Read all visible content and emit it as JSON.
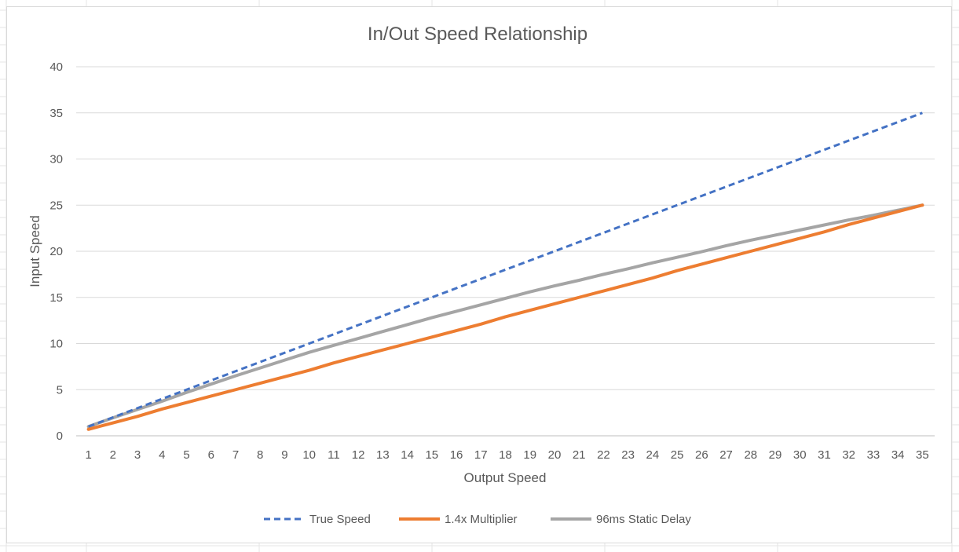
{
  "chart_data": {
    "type": "line",
    "title": "In/Out Speed Relationship",
    "xlabel": "Output Speed",
    "ylabel": "Input Speed",
    "categories": [
      1,
      2,
      3,
      4,
      5,
      6,
      7,
      8,
      9,
      10,
      11,
      12,
      13,
      14,
      15,
      16,
      17,
      18,
      19,
      20,
      21,
      22,
      23,
      24,
      25,
      26,
      27,
      28,
      29,
      30,
      31,
      32,
      33,
      34,
      35
    ],
    "yticks": [
      0,
      5,
      10,
      15,
      20,
      25,
      30,
      35,
      40
    ],
    "ylim": [
      0,
      40
    ],
    "grid": true,
    "legend_position": "bottom",
    "series": [
      {
        "name": "True Speed",
        "color": "#4472c4",
        "dashed": true,
        "values": [
          1,
          2,
          3,
          4,
          5,
          6,
          7,
          8,
          9,
          10,
          11,
          12,
          13,
          14,
          15,
          16,
          17,
          18,
          19,
          20,
          21,
          22,
          23,
          24,
          25,
          26,
          27,
          28,
          29,
          30,
          31,
          32,
          33,
          34,
          35
        ]
      },
      {
        "name": "1.4x Multiplier",
        "color": "#ed7d31",
        "dashed": false,
        "values": [
          0.7,
          1.4,
          2.1,
          2.9,
          3.6,
          4.3,
          5.0,
          5.7,
          6.4,
          7.1,
          7.9,
          8.6,
          9.3,
          10.0,
          10.7,
          11.4,
          12.1,
          12.9,
          13.6,
          14.3,
          15.0,
          15.7,
          16.4,
          17.1,
          17.9,
          18.6,
          19.3,
          20.0,
          20.7,
          21.4,
          22.1,
          22.9,
          23.6,
          24.3,
          25.0
        ]
      },
      {
        "name": "96ms Static Delay",
        "color": "#a5a5a5",
        "dashed": false,
        "values": [
          1.0,
          1.95,
          2.85,
          3.75,
          4.7,
          5.6,
          6.5,
          7.35,
          8.2,
          9.05,
          9.8,
          10.55,
          11.3,
          12.05,
          12.8,
          13.5,
          14.2,
          14.9,
          15.6,
          16.25,
          16.85,
          17.5,
          18.1,
          18.75,
          19.35,
          19.95,
          20.6,
          21.2,
          21.75,
          22.3,
          22.85,
          23.4,
          23.9,
          24.45,
          25.0
        ]
      }
    ]
  }
}
